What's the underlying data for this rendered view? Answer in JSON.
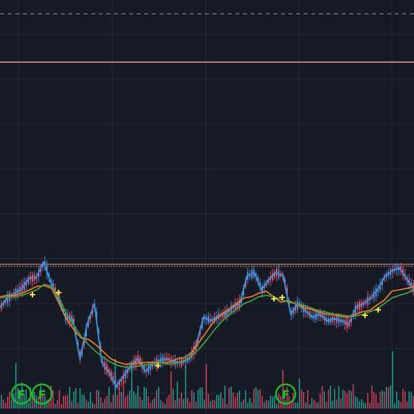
{
  "theme": {
    "background": "#161a25",
    "grid": "#232838",
    "candle_up": "#e8546e",
    "candle_down": "#5b8bd8",
    "zigzag": "#3d8fd6",
    "ma_fast": "#e27d2d",
    "ma_slow": "#4a9c45",
    "volume_up": "#d8455f",
    "volume_down": "#26a69a",
    "level_solid": "#f0a8a0",
    "level_dashed": "#9aa0ad",
    "level_dotted": "#e8a070",
    "signal_cross": "#f5e642",
    "fractal_marker": "#1fbf2a"
  },
  "fractal_markers": [
    {
      "label": "F"
    },
    {
      "label": "F"
    },
    {
      "label": "F"
    }
  ],
  "chart_data": {
    "type": "line",
    "price_levels": [
      {
        "style": "dashed"
      },
      {
        "style": "solid"
      },
      {
        "style": "dotted"
      }
    ],
    "series": [
      {
        "values": [
          445,
          432,
          425,
          418,
          403,
          402,
          380,
          410,
          432,
          460,
          463,
          520,
          470,
          440,
          525,
          540,
          560,
          545,
          530,
          520,
          538,
          528,
          522,
          520,
          525,
          525,
          520,
          500,
          460,
          465,
          458,
          455,
          445,
          440,
          400,
          395,
          420,
          405,
          395,
          400,
          455,
          440,
          450,
          460,
          455,
          465,
          462,
          465,
          470,
          445,
          440,
          432,
          420,
          400,
          392,
          388,
          405,
          420
        ]
      },
      {
        "values": [
          430,
          428,
          428,
          425,
          420,
          415,
          414,
          418,
          440,
          462,
          478,
          490,
          492,
          500,
          510,
          520,
          525,
          528,
          527,
          526,
          525,
          525,
          526,
          525,
          520,
          518,
          510,
          495,
          480,
          465,
          455,
          448,
          440,
          432,
          430,
          425,
          422,
          430,
          438,
          436,
          440,
          445,
          448,
          452,
          455,
          456,
          458,
          460,
          456,
          452,
          450,
          442,
          435,
          422,
          420,
          418,
          415
        ]
      },
      {
        "values": [
          432,
          430,
          430,
          428,
          424,
          420,
          412,
          415,
          432,
          455,
          472,
          488,
          500,
          510,
          518,
          525,
          530,
          532,
          532,
          530,
          528,
          527,
          526,
          528,
          526,
          522,
          515,
          505,
          492,
          478,
          466,
          456,
          448,
          440,
          436,
          430,
          428,
          430,
          434,
          438,
          440,
          442,
          446,
          450,
          452,
          455,
          456,
          458,
          458,
          456,
          452,
          448,
          440,
          432,
          428,
          425,
          420
        ]
      }
    ],
    "volume_overlay": true
  }
}
